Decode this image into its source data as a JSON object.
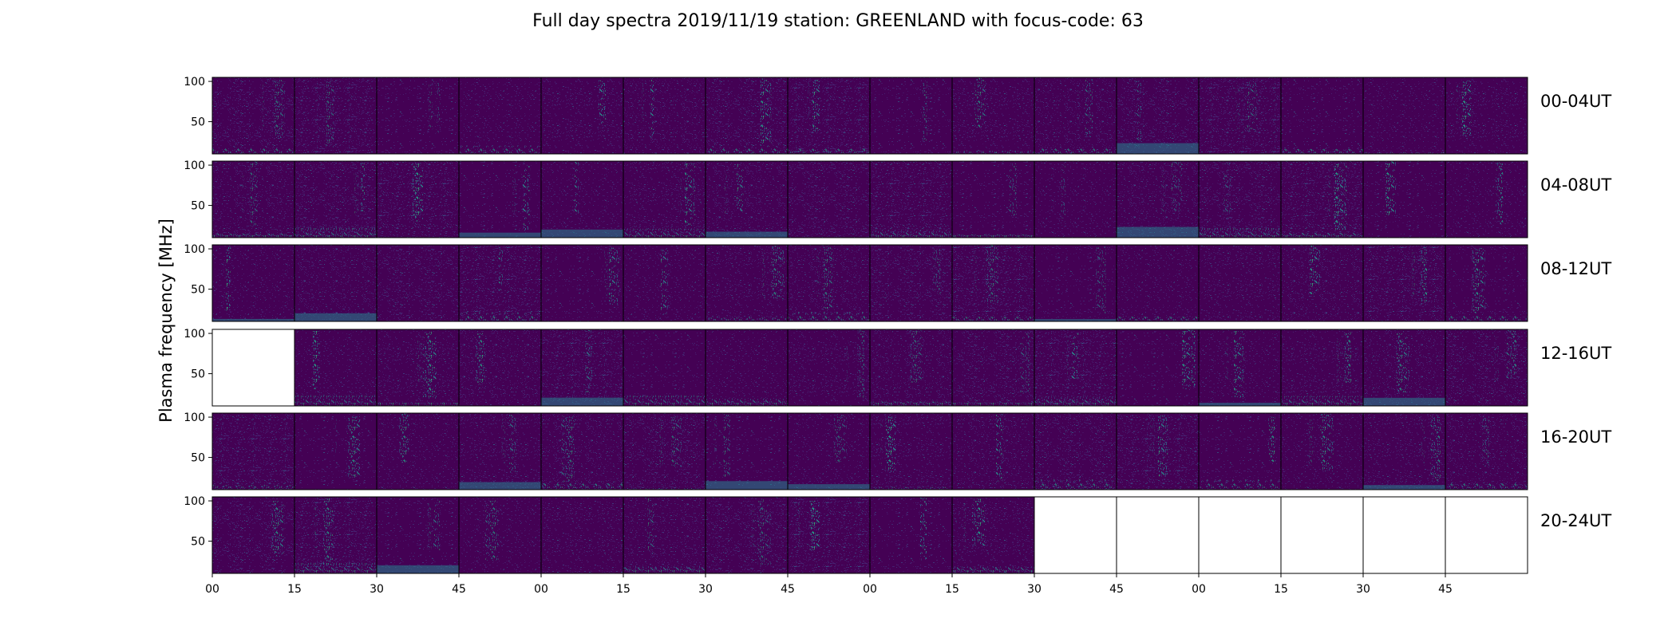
{
  "chart_data": {
    "type": "heatmap",
    "title": "Full day spectra 2019/11/19 station: GREENLAND with focus-code: 63",
    "ylabel": "Plasma frequency [MHz]",
    "rows": [
      "00-04UT",
      "04-08UT",
      "08-12UT",
      "12-16UT",
      "16-20UT",
      "20-24UT"
    ],
    "panels_per_row": 16,
    "yticks": [
      50,
      100
    ],
    "ylim": [
      10,
      105
    ],
    "xtick_labels": [
      "00",
      "15",
      "30",
      "45",
      "00",
      "15",
      "30",
      "45",
      "00",
      "15",
      "30",
      "45",
      "00",
      "15",
      "30",
      "45"
    ],
    "colormap": [
      "#440154",
      "#482878",
      "#3e4989",
      "#31688e",
      "#26828e",
      "#1f9e89",
      "#35b779",
      "#6ece58"
    ],
    "empty_panels": {
      "12-16UT": [
        0
      ],
      "20-24UT": [
        10,
        11,
        12,
        13,
        14,
        15
      ]
    }
  }
}
